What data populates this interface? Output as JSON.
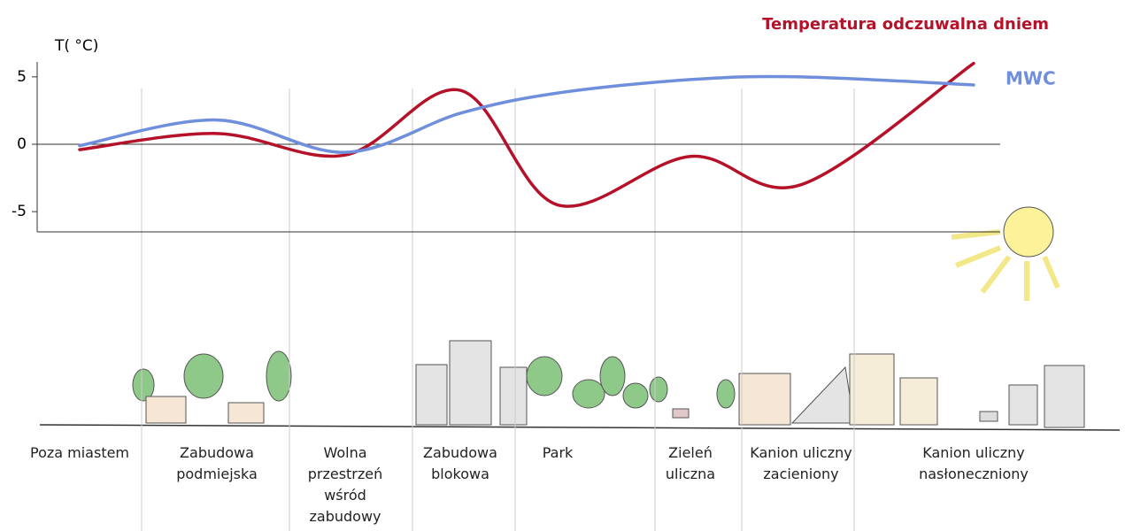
{
  "chart_data": {
    "type": "line",
    "title": "Temperatura odczuwalna dniem",
    "y_label": "T( °C)",
    "categories": [
      "Poza miastem",
      "Zabudowa podmiejska",
      "Wolna przestrzeń wśród zabudowy",
      "Zabudowa blokowa",
      "Park",
      "Zieleń uliczna",
      "Kanion uliczny zacieniony",
      "Kanion uliczny nasłoneczniony"
    ],
    "series": [
      {
        "name": "Temperatura odczuwalna dniem",
        "color": "#b5122a",
        "values": [
          -0.4,
          0.8,
          -0.8,
          4,
          -4.5,
          -0.9,
          -3,
          6
        ]
      },
      {
        "name": "MWC",
        "color": "#6f8fdc",
        "values": [
          -0.1,
          1.8,
          -0.6,
          2.3,
          3.8,
          4.8,
          5,
          4.4
        ]
      }
    ],
    "ylim": [
      -6.5,
      6.5
    ],
    "yticks": [
      -5,
      0,
      5
    ]
  }
}
